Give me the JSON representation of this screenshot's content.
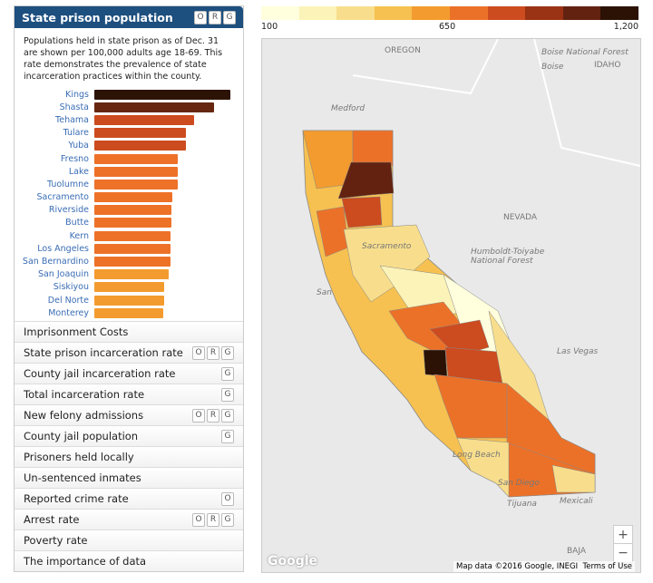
{
  "panel": {
    "title": "State prison population",
    "badges": [
      "O",
      "R",
      "G"
    ],
    "description": "Populations held in state prison as of Dec. 31 are shown per 100,000 adults age 18-69. This rate demonstrates the prevalence of state incarceration practices within the county.",
    "bars": [
      {
        "county": "Kings",
        "value": 1150,
        "color": "#2d1305"
      },
      {
        "county": "Shasta",
        "value": 1010,
        "color": "#662610"
      },
      {
        "county": "Tehama",
        "value": 845,
        "color": "#cc4b1f"
      },
      {
        "county": "Tulare",
        "value": 775,
        "color": "#cc4b1f"
      },
      {
        "county": "Yuba",
        "value": 775,
        "color": "#cc4b1f"
      },
      {
        "county": "Fresno",
        "value": 705,
        "color": "#ee7128"
      },
      {
        "county": "Lake",
        "value": 705,
        "color": "#ee7128"
      },
      {
        "county": "Tuolumne",
        "value": 705,
        "color": "#ee7128"
      },
      {
        "county": "Sacramento",
        "value": 660,
        "color": "#ee7128"
      },
      {
        "county": "Riverside",
        "value": 650,
        "color": "#ee7128"
      },
      {
        "county": "Butte",
        "value": 650,
        "color": "#ee7128"
      },
      {
        "county": "Kern",
        "value": 645,
        "color": "#ee7128"
      },
      {
        "county": "Los Angeles",
        "value": 645,
        "color": "#ee7128"
      },
      {
        "county": "San Bernardino",
        "value": 645,
        "color": "#ee7128"
      },
      {
        "county": "San Joaquin",
        "value": 630,
        "color": "#f39b2f"
      },
      {
        "county": "Siskiyou",
        "value": 590,
        "color": "#f39b2f"
      },
      {
        "county": "Del Norte",
        "value": 590,
        "color": "#f39b2f"
      },
      {
        "county": "Monterey",
        "value": 585,
        "color": "#f39b2f"
      }
    ]
  },
  "menu": [
    {
      "label": "Imprisonment Costs",
      "badges": []
    },
    {
      "label": "State prison incarceration rate",
      "badges": [
        "O",
        "R",
        "G"
      ]
    },
    {
      "label": "County jail incarceration rate",
      "badges": [
        "G"
      ]
    },
    {
      "label": "Total incarceration rate",
      "badges": [
        "G"
      ]
    },
    {
      "label": "New felony admissions",
      "badges": [
        "O",
        "R",
        "G"
      ]
    },
    {
      "label": "County jail population",
      "badges": [
        "G"
      ]
    },
    {
      "label": "Prisoners held locally",
      "badges": []
    },
    {
      "label": "Un-sentenced inmates",
      "badges": []
    },
    {
      "label": "Reported crime rate",
      "badges": [
        "O"
      ]
    },
    {
      "label": "Arrest rate",
      "badges": [
        "O",
        "R",
        "G"
      ]
    },
    {
      "label": "Poverty rate",
      "badges": []
    },
    {
      "label": "The importance of data",
      "badges": []
    }
  ],
  "legend": {
    "colors": [
      "#ffffdd",
      "#fbf3b8",
      "#f8de8c",
      "#f6c150",
      "#f39b2f",
      "#ec7128",
      "#cc4b1f",
      "#9a3214",
      "#632210",
      "#2b1204"
    ],
    "min": "100",
    "mid": "650",
    "max": "1,200"
  },
  "map": {
    "labels": [
      "OREGON",
      "IDAHO",
      "NEVADA",
      "Medford",
      "Boise",
      "Humboldt-Toiyabe National Forest",
      "Las Vegas",
      "Long Beach",
      "San Diego",
      "Tijuana",
      "Mexicali",
      "BAJA",
      "Sacramento",
      "San"
    ],
    "boise_forest": "Boise National Forest",
    "attribution": "Map data ©2016 Google, INEGI",
    "terms": "Terms of Use",
    "logo": "Google",
    "zoom_in": "+",
    "zoom_out": "−"
  }
}
